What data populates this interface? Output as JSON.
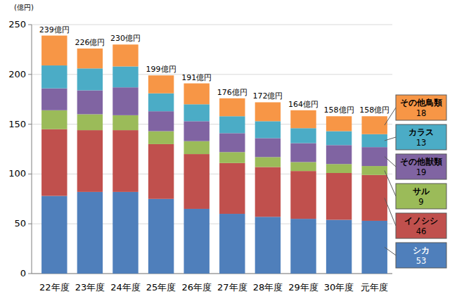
{
  "chart_data": {
    "type": "bar",
    "stacked": true,
    "grid": true,
    "ylabel": "(億円)",
    "categories": [
      "22年度",
      "23年度",
      "24年度",
      "25年度",
      "26年度",
      "27年度",
      "28年度",
      "29年度",
      "30年度",
      "元年度"
    ],
    "ylim": [
      0,
      250
    ],
    "yticks": [
      0,
      50,
      100,
      150,
      200,
      250
    ],
    "totals": [
      239,
      226,
      230,
      199,
      191,
      176,
      172,
      164,
      158,
      158
    ],
    "total_labels": [
      "239億円",
      "226億円",
      "230億円",
      "199億円",
      "191億円",
      "176億円",
      "172億円",
      "164億円",
      "158億円",
      "158億円"
    ],
    "series": [
      {
        "name": "シカ",
        "color": "#4f7fbb",
        "values": [
          78,
          82,
          82,
          75,
          65,
          60,
          57,
          55,
          54,
          53
        ]
      },
      {
        "name": "イノシシ",
        "color": "#c0504d",
        "values": [
          67,
          62,
          62,
          55,
          55,
          51,
          50,
          48,
          47,
          46
        ]
      },
      {
        "name": "サル",
        "color": "#9bbb59",
        "values": [
          19,
          16,
          15,
          13,
          13,
          11,
          10,
          9,
          9,
          9
        ]
      },
      {
        "name": "その他獣類",
        "color": "#8064a2",
        "values": [
          22,
          24,
          28,
          20,
          20,
          19,
          19,
          19,
          19,
          19
        ]
      },
      {
        "name": "カラス",
        "color": "#4bacc6",
        "values": [
          23,
          22,
          21,
          18,
          17,
          17,
          17,
          15,
          14,
          13
        ]
      },
      {
        "name": "その他鳥類",
        "color": "#f79646",
        "values": [
          30,
          20,
          22,
          18,
          21,
          18,
          19,
          18,
          15,
          18
        ]
      }
    ]
  }
}
